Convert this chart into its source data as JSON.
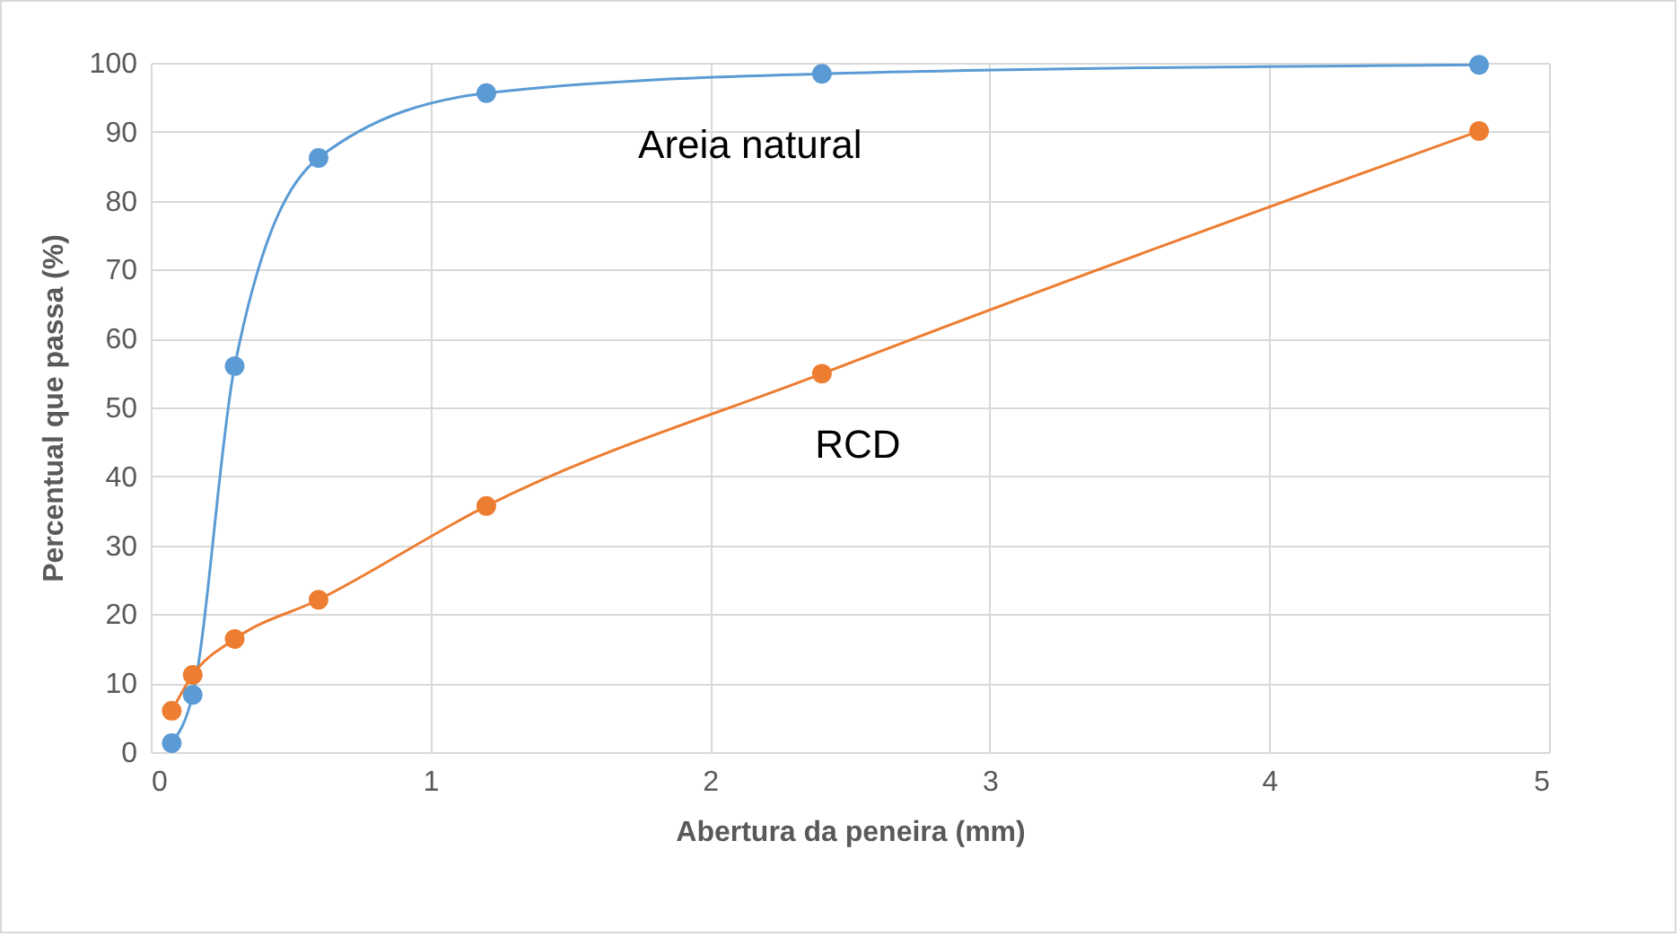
{
  "chart_data": {
    "type": "line",
    "xlabel": "Abertura da peneira (mm)",
    "ylabel": "Percentual que passa (%)",
    "x": [
      0.075,
      0.15,
      0.3,
      0.6,
      1.2,
      2.4,
      4.75
    ],
    "series": [
      {
        "name": "Areia natural",
        "color": "#5b9bd5",
        "values": [
          1.3,
          8.3,
          56,
          86.2,
          95.6,
          98.4,
          99.7
        ]
      },
      {
        "name": "RCD",
        "color": "#ed7d31",
        "values": [
          6,
          11.2,
          16.4,
          22.1,
          35.7,
          54.9,
          90.1
        ]
      }
    ],
    "xlim": [
      0,
      5
    ],
    "xticks": [
      0,
      1,
      2,
      3,
      4,
      5
    ],
    "ylim": [
      0,
      100
    ],
    "yticks": [
      0,
      10,
      20,
      30,
      40,
      50,
      60,
      70,
      80,
      90,
      100
    ],
    "grid": true,
    "legend": false,
    "marker": "circle",
    "line_style": "solid"
  }
}
